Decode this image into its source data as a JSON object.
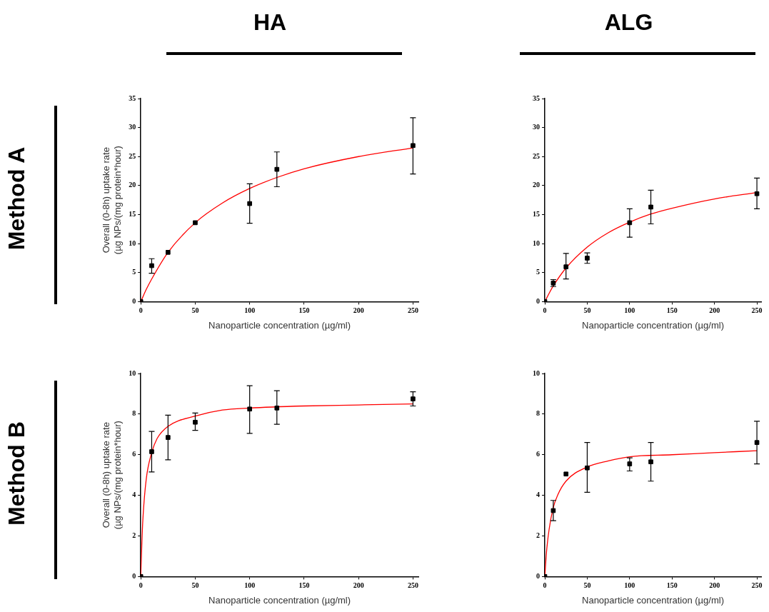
{
  "chart_data": [
    {
      "type": "scatter",
      "title": "HA",
      "annotations": [
        "Method A"
      ],
      "xlabel": "Nanoparticle concentration (µg/ml)",
      "ylabel": "Overall (0-8h) uptake rate\n(µg NPs/(mg protein*hour)",
      "xlim": [
        0,
        255
      ],
      "xticks": [
        0,
        50,
        100,
        150,
        200,
        250
      ],
      "ylim": [
        0,
        35
      ],
      "yticks": [
        0,
        5,
        10,
        15,
        20,
        25,
        30,
        35
      ],
      "grid": false,
      "legend": false,
      "series": [
        {
          "marker": "square",
          "color": "#000000",
          "x": [
            0,
            10,
            25,
            50,
            100,
            125,
            250
          ],
          "values": [
            0,
            6.2,
            8.5,
            13.6,
            16.9,
            22.8,
            26.9
          ],
          "errors": [
            null,
            [
              4.9,
              7.4
            ],
            null,
            null,
            [
              13.5,
              20.3
            ],
            [
              19.8,
              25.8
            ],
            [
              22,
              31.7
            ]
          ]
        },
        {
          "type": "line",
          "marker": "none",
          "color": "#ff0000",
          "x": [
            0,
            5,
            10,
            25,
            50,
            75,
            100,
            125,
            150,
            200,
            250
          ],
          "values": [
            0,
            2.1,
            3.9,
            8.5,
            13.6,
            17.0,
            19.5,
            21.4,
            22.9,
            25.0,
            26.5
          ]
        }
      ]
    },
    {
      "type": "scatter",
      "title": "ALG",
      "xlabel": "Nanoparticle concentration (µg/ml)",
      "xlim": [
        0,
        255
      ],
      "xticks": [
        0,
        50,
        100,
        150,
        200,
        250
      ],
      "ylim": [
        0,
        35
      ],
      "yticks": [
        0,
        5,
        10,
        15,
        20,
        25,
        30,
        35
      ],
      "grid": false,
      "legend": false,
      "series": [
        {
          "marker": "square",
          "color": "#000000",
          "x": [
            0,
            10,
            25,
            50,
            100,
            125,
            250
          ],
          "values": [
            0,
            3.2,
            6.0,
            7.5,
            13.6,
            16.3,
            18.6
          ],
          "errors": [
            null,
            [
              2.6,
              3.8
            ],
            [
              3.9,
              8.3
            ],
            [
              6.6,
              8.4
            ],
            [
              11.1,
              16.0
            ],
            [
              13.4,
              19.2
            ],
            [
              16.0,
              21.3
            ]
          ]
        },
        {
          "type": "line",
          "marker": "none",
          "color": "#ff0000",
          "x": [
            0,
            5,
            10,
            25,
            50,
            75,
            100,
            125,
            150,
            200,
            250
          ],
          "values": [
            0,
            1.4,
            2.7,
            5.8,
            9.4,
            11.9,
            13.7,
            15.1,
            16.1,
            17.7,
            18.8
          ]
        }
      ]
    },
    {
      "type": "scatter",
      "annotations": [
        "Method B"
      ],
      "xlabel": "Nanoparticle concentration (µg/ml)",
      "ylabel": "Overall (0-8h) uptake rate\n(µg NPs/(mg protein*hour)",
      "xlim": [
        0,
        255
      ],
      "xticks": [
        0,
        50,
        100,
        150,
        200,
        250
      ],
      "ylim": [
        0,
        10
      ],
      "yticks": [
        0,
        2,
        4,
        6,
        8,
        10
      ],
      "grid": false,
      "legend": false,
      "series": [
        {
          "marker": "square",
          "color": "#000000",
          "x": [
            0,
            10,
            25,
            50,
            100,
            125,
            250
          ],
          "values": [
            0,
            6.15,
            6.85,
            7.6,
            8.25,
            8.3,
            8.75
          ],
          "errors": [
            null,
            [
              5.15,
              7.15
            ],
            [
              5.75,
              7.95
            ],
            [
              7.2,
              8.05
            ],
            [
              7.05,
              9.4
            ],
            [
              7.5,
              9.15
            ],
            [
              8.4,
              9.1
            ]
          ]
        },
        {
          "type": "line",
          "marker": "none",
          "color": "#ff0000",
          "x": [
            0,
            1,
            2,
            5,
            10,
            15,
            25,
            50,
            75,
            100,
            150,
            200,
            250
          ],
          "values": [
            0,
            1.7,
            2.9,
            4.8,
            6.1,
            6.8,
            7.4,
            7.9,
            8.2,
            8.3,
            8.4,
            8.45,
            8.5
          ]
        }
      ]
    },
    {
      "type": "scatter",
      "xlabel": "Nanoparticle concentration (µg/ml)",
      "xlim": [
        0,
        255
      ],
      "xticks": [
        0,
        50,
        100,
        150,
        200,
        250
      ],
      "ylim": [
        0,
        10
      ],
      "yticks": [
        0,
        2,
        4,
        6,
        8,
        10
      ],
      "grid": false,
      "legend": false,
      "series": [
        {
          "marker": "square",
          "color": "#000000",
          "x": [
            0,
            10,
            25,
            50,
            100,
            125,
            250
          ],
          "values": [
            0,
            3.25,
            5.05,
            5.35,
            5.55,
            5.65,
            6.6
          ],
          "errors": [
            null,
            [
              2.75,
              3.75
            ],
            null,
            [
              4.15,
              6.6
            ],
            [
              5.2,
              5.85
            ],
            [
              4.7,
              6.6
            ],
            [
              5.55,
              7.65
            ]
          ]
        },
        {
          "type": "line",
          "marker": "none",
          "color": "#ff0000",
          "x": [
            0,
            2,
            5,
            10,
            15,
            25,
            50,
            75,
            100,
            150,
            200,
            250
          ],
          "values": [
            0,
            1.2,
            2.3,
            3.4,
            4.0,
            4.7,
            5.4,
            5.7,
            5.9,
            6.0,
            6.1,
            6.2
          ]
        }
      ]
    }
  ]
}
